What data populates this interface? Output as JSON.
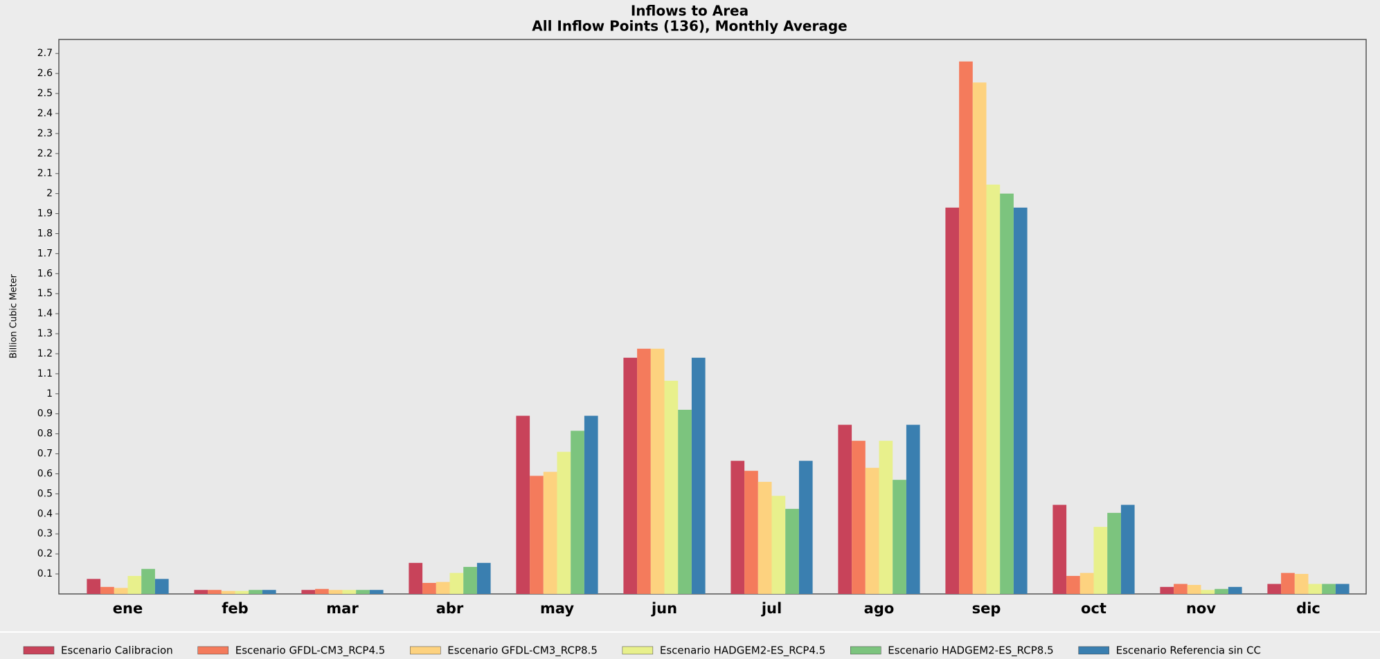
{
  "chart_data": {
    "type": "bar",
    "title": "Inflows to Area",
    "subtitle": "All Inflow Points (136), Monthly Average",
    "y_label": "Billion Cubic Meter",
    "categories": [
      "ene",
      "feb",
      "mar",
      "abr",
      "may",
      "jun",
      "jul",
      "ago",
      "sep",
      "oct",
      "nov",
      "dic"
    ],
    "series": [
      {
        "name": "Escenario Calibracion",
        "color": "#c8435a",
        "values": [
          0.075,
          0.02,
          0.02,
          0.155,
          0.89,
          1.18,
          0.665,
          0.845,
          1.93,
          0.445,
          0.035,
          0.05
        ]
      },
      {
        "name": "Escenario GFDL-CM3_RCP4.5",
        "color": "#f47b5c",
        "values": [
          0.035,
          0.02,
          0.025,
          0.055,
          0.59,
          1.225,
          0.615,
          0.765,
          2.66,
          0.09,
          0.05,
          0.105
        ]
      },
      {
        "name": "Escenario GFDL-CM3_RCP8.5",
        "color": "#fdd27f",
        "values": [
          0.03,
          0.015,
          0.02,
          0.06,
          0.61,
          1.225,
          0.56,
          0.63,
          2.555,
          0.105,
          0.045,
          0.1
        ]
      },
      {
        "name": "Escenario HADGEM2-ES_RCP4.5",
        "color": "#e8f08c",
        "values": [
          0.09,
          0.015,
          0.02,
          0.105,
          0.71,
          1.065,
          0.49,
          0.765,
          2.045,
          0.335,
          0.02,
          0.05
        ]
      },
      {
        "name": "Escenario HADGEM2-ES_RCP8.5",
        "color": "#7cc47e",
        "values": [
          0.125,
          0.02,
          0.02,
          0.135,
          0.815,
          0.92,
          0.425,
          0.57,
          2.0,
          0.405,
          0.025,
          0.05
        ]
      },
      {
        "name": "Escenario Referencia sin CC",
        "color": "#3a7fb0",
        "values": [
          0.075,
          0.02,
          0.02,
          0.155,
          0.89,
          1.18,
          0.665,
          0.845,
          1.93,
          0.445,
          0.035,
          0.05
        ]
      }
    ],
    "ylim": [
      0,
      2.77
    ],
    "yticks": [
      0.1,
      0.2,
      0.3,
      0.4,
      0.5,
      0.6,
      0.7,
      0.8,
      0.9,
      1,
      1.1,
      1.2,
      1.3,
      1.4,
      1.5,
      1.6,
      1.7,
      1.8,
      1.9,
      2,
      2.1,
      2.2,
      2.3,
      2.4,
      2.5,
      2.6,
      2.7
    ],
    "grid": false
  }
}
